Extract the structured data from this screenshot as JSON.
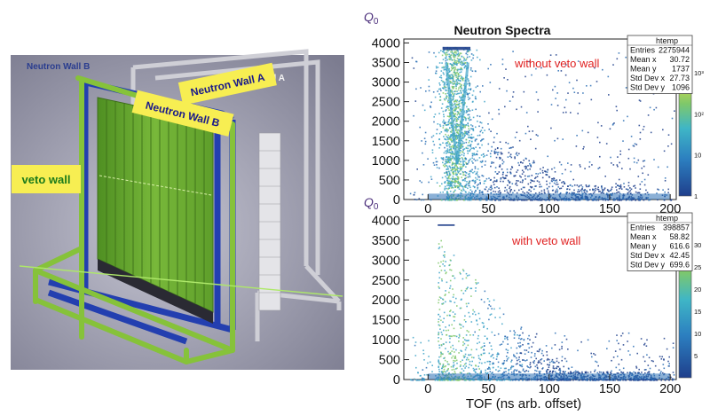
{
  "figure": {
    "title": "Neutron Spectra",
    "y_label_main": "Q",
    "y_label_sub": "0",
    "x_label": "TOF (ns arb. offset)"
  },
  "illustration": {
    "labels": {
      "neutron_wall_b_corner": "Neutron Wall B",
      "neutron_wall_a_corner": "Neutron Wall A",
      "neutron_wall_a_tag": "Neutron Wall A",
      "neutron_wall_b_tag": "Neutron Wall B",
      "veto_wall_tag": "veto wall"
    },
    "colors": {
      "background": "#8f8fa1",
      "detector_green": "#6fae2f",
      "frame_green": "#86c23a",
      "frame_blue": "#233fb0",
      "frame_gray": "#bfbfc4",
      "tag_yellow": "#f7ee52"
    }
  },
  "chart_data": [
    {
      "type": "heatmap",
      "panel": "top",
      "annotation": "without veto wall",
      "annotation_color": "#e02020",
      "xlim": [
        -20,
        205
      ],
      "ylim": [
        0,
        4100
      ],
      "x_ticks": [
        "0",
        "50",
        "100",
        "150",
        "200"
      ],
      "y_ticks": [
        "0",
        "500",
        "1000",
        "1500",
        "2000",
        "2500",
        "3000",
        "3500",
        "4000"
      ],
      "colorbar": {
        "scale": "log",
        "ticks": [
          "1",
          "10",
          "10²",
          "10³"
        ]
      },
      "stats": {
        "title": "htemp",
        "rows": [
          {
            "label": "Entries",
            "value": "2275944"
          },
          {
            "label": "Mean x",
            "value": "30.72"
          },
          {
            "label": "Mean y",
            "value": "1737"
          },
          {
            "label": "Std Dev x",
            "value": "27.73"
          },
          {
            "label": "Std Dev y",
            "value": "1096"
          }
        ]
      }
    },
    {
      "type": "heatmap",
      "panel": "bottom",
      "annotation": "with veto wall",
      "annotation_color": "#e02020",
      "xlim": [
        -20,
        205
      ],
      "ylim": [
        0,
        4100
      ],
      "x_ticks": [
        "0",
        "50",
        "100",
        "150",
        "200"
      ],
      "y_ticks": [
        "0",
        "500",
        "1000",
        "1500",
        "2000",
        "2500",
        "3000",
        "3500",
        "4000"
      ],
      "colorbar": {
        "scale": "linear",
        "ticks": [
          "5",
          "10",
          "15",
          "20",
          "25",
          "30"
        ]
      },
      "stats": {
        "title": "htemp",
        "rows": [
          {
            "label": "Entries",
            "value": "398857"
          },
          {
            "label": "Mean x",
            "value": "58.82"
          },
          {
            "label": "Mean y",
            "value": "616.6"
          },
          {
            "label": "Std Dev x",
            "value": "42.45"
          },
          {
            "label": "Std Dev y",
            "value": "699.6"
          }
        ]
      }
    }
  ]
}
